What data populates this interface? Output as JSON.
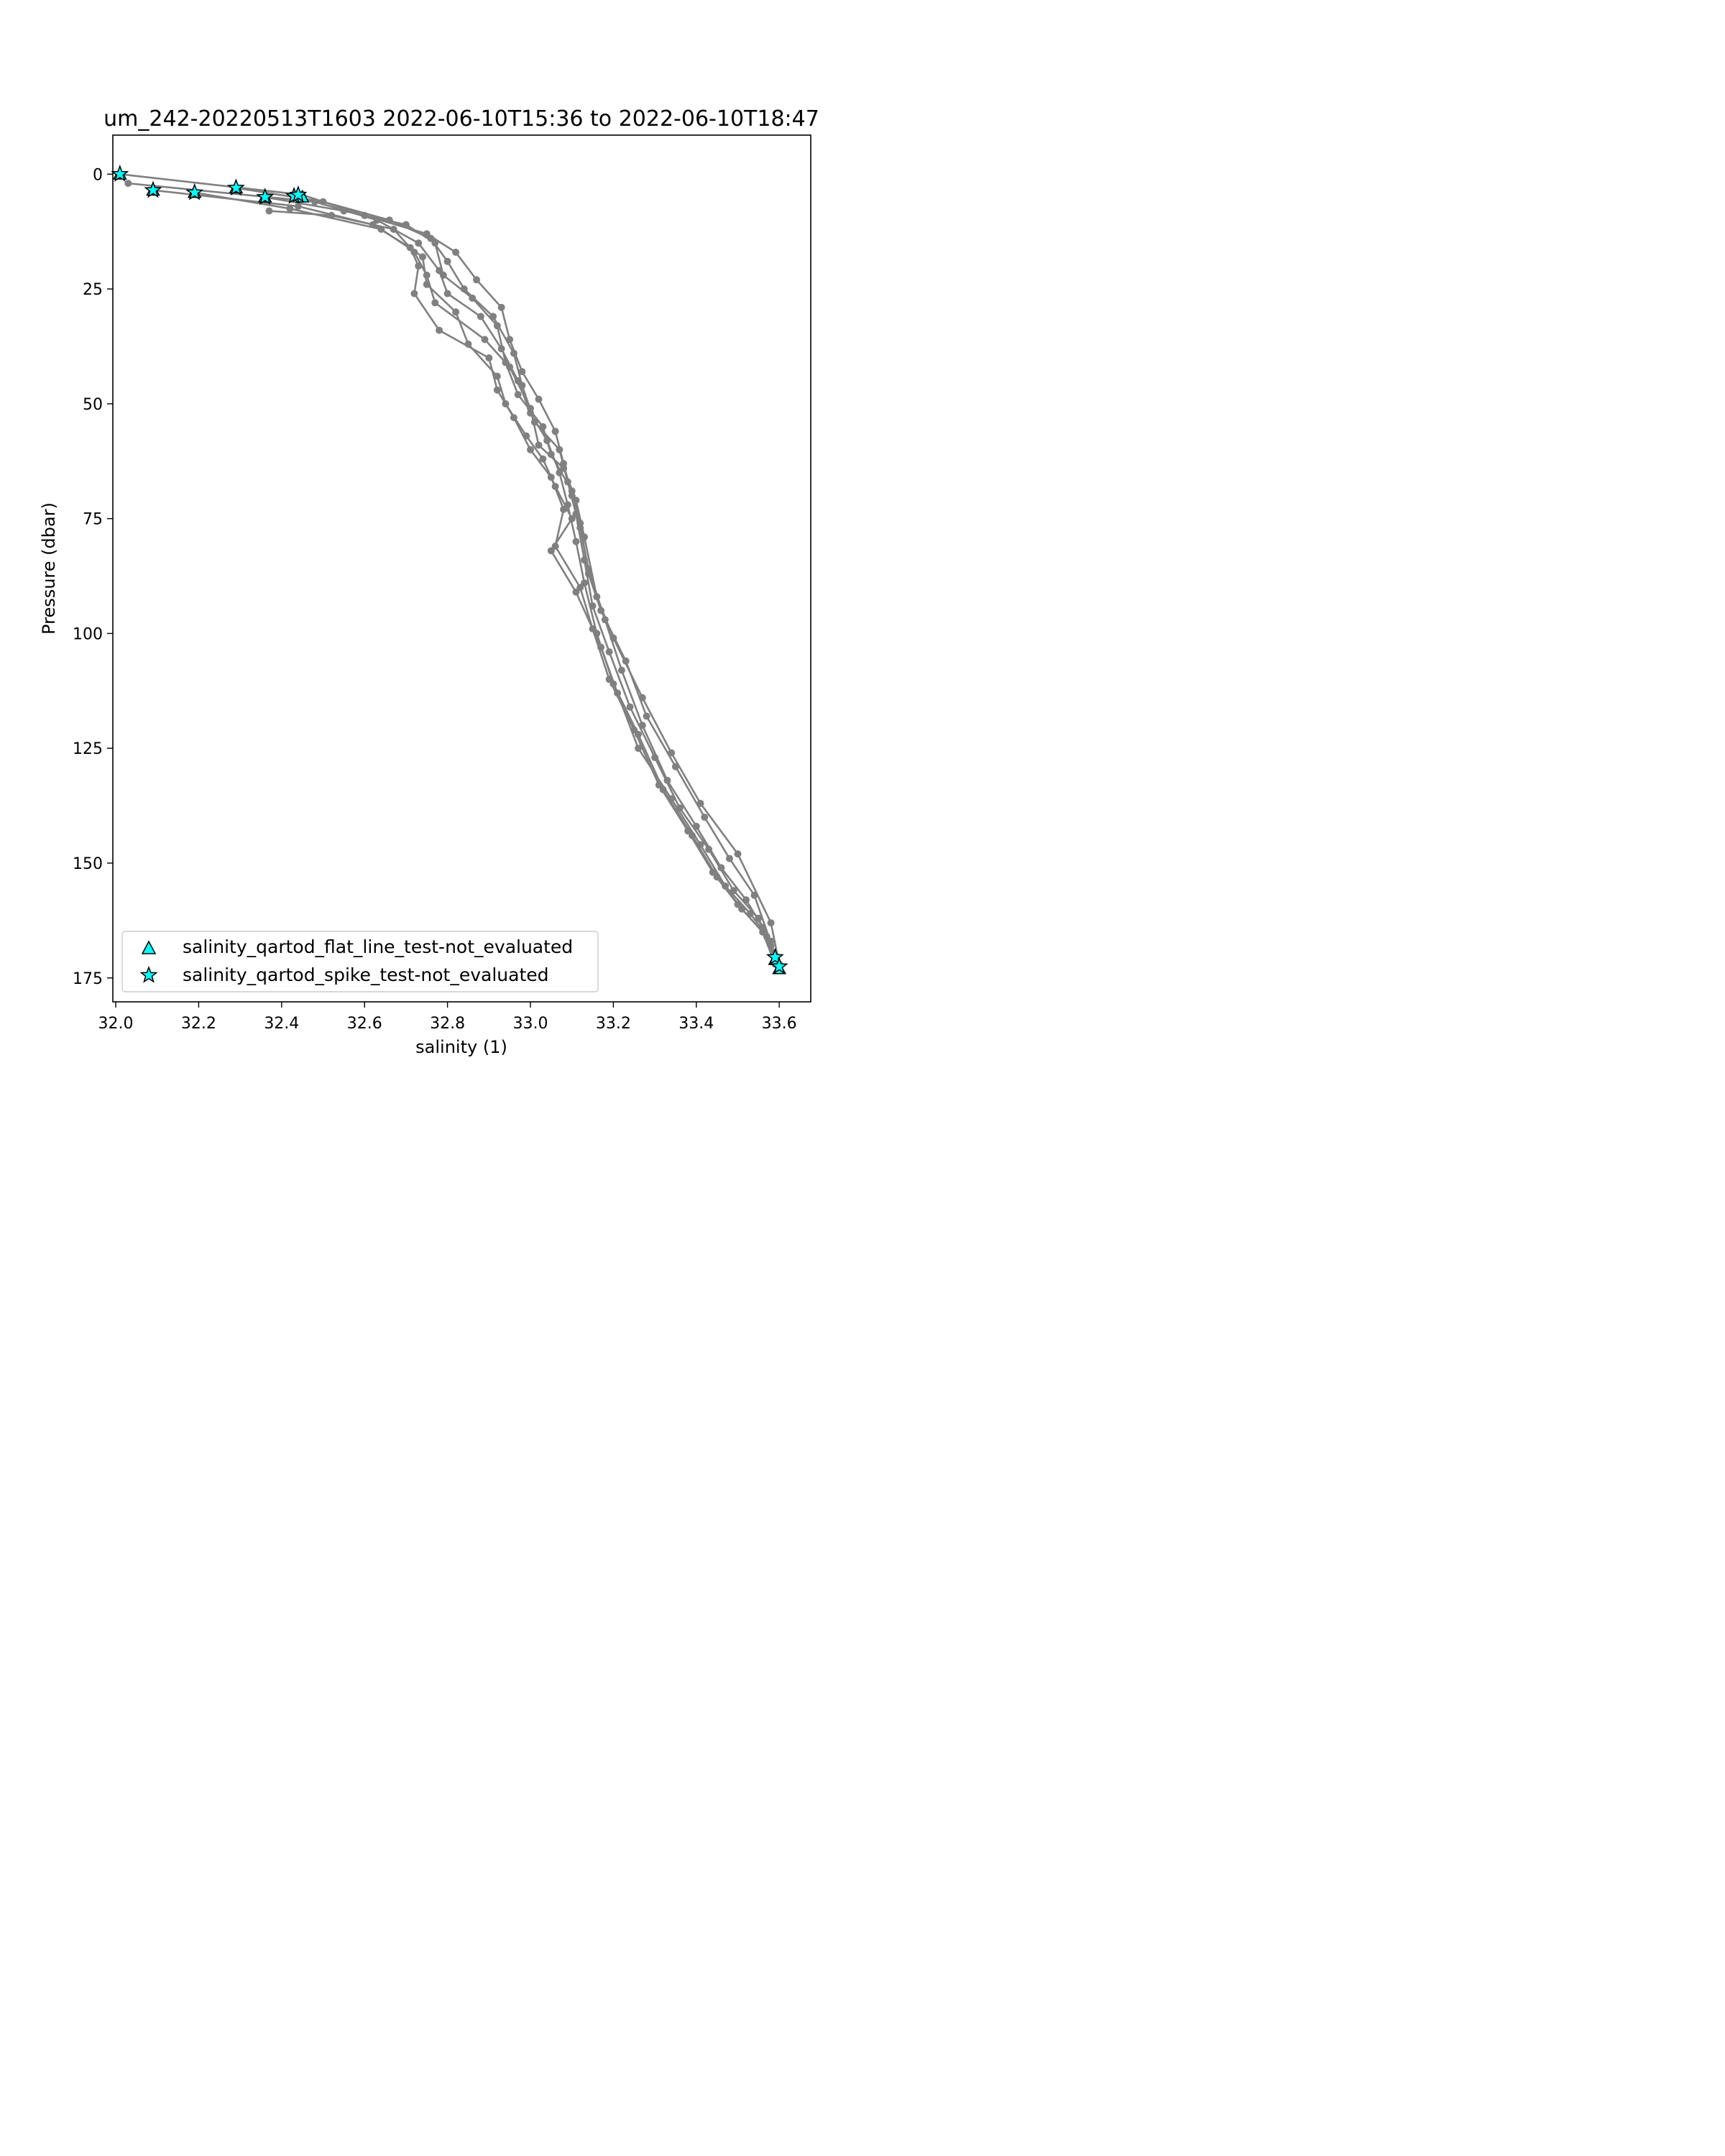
{
  "chart_data": {
    "type": "line",
    "title": "um_242-20220513T1603 2022-06-10T15:36 to 2022-06-10T18:47",
    "xlabel": "salinity (1)",
    "ylabel": "Pressure (dbar)",
    "xlim": [
      31.993,
      33.676
    ],
    "ylim": [
      180.2,
      -8.5
    ],
    "y_inverted": true,
    "grid": false,
    "x_ticks": [
      {
        "value": 32.0,
        "label": "32.0"
      },
      {
        "value": 32.2,
        "label": "32.2"
      },
      {
        "value": 32.4,
        "label": "32.4"
      },
      {
        "value": 32.6,
        "label": "32.6"
      },
      {
        "value": 32.8,
        "label": "32.8"
      },
      {
        "value": 33.0,
        "label": "33.0"
      },
      {
        "value": 33.2,
        "label": "33.2"
      },
      {
        "value": 33.4,
        "label": "33.4"
      },
      {
        "value": 33.6,
        "label": "33.6"
      }
    ],
    "y_ticks": [
      {
        "value": 0,
        "label": "0"
      },
      {
        "value": 25,
        "label": "25"
      },
      {
        "value": 50,
        "label": "50"
      },
      {
        "value": 75,
        "label": "75"
      },
      {
        "value": 100,
        "label": "100"
      },
      {
        "value": 125,
        "label": "125"
      },
      {
        "value": 150,
        "label": "150"
      },
      {
        "value": 175,
        "label": "175"
      }
    ],
    "line_color": "#808080",
    "marker_color": "#00ffff",
    "legend_position": "lower left",
    "series": [
      {
        "salinity": [
          32.01,
          32.45,
          32.6,
          32.75,
          32.82,
          32.87,
          32.93,
          32.95,
          32.98,
          33.02,
          33.06,
          33.08,
          33.1,
          33.12,
          33.14,
          33.18,
          33.22,
          33.27,
          33.33,
          33.4,
          33.46,
          33.52,
          33.56,
          33.59
        ],
        "pressure": [
          0,
          4.5,
          9,
          13,
          17,
          23,
          29,
          36,
          43,
          49,
          56,
          63,
          70,
          77,
          86,
          97,
          108,
          120,
          132,
          142,
          151,
          158,
          164,
          171
        ]
      },
      {
        "salinity": [
          32.03,
          32.48,
          32.63,
          32.73,
          32.78,
          32.8,
          32.88,
          32.93,
          32.97,
          33.0,
          33.04,
          33.07,
          33.09,
          33.11,
          33.13,
          33.16,
          33.2,
          33.26,
          33.32,
          33.39,
          33.45,
          33.51,
          33.57,
          33.6
        ],
        "pressure": [
          2,
          6,
          10,
          15,
          21,
          26,
          31,
          38,
          45,
          52,
          58,
          65,
          72,
          80,
          89,
          100,
          111,
          122,
          134,
          144,
          153,
          160,
          166,
          172
        ]
      },
      {
        "salinity": [
          32.09,
          32.44,
          32.62,
          32.71,
          32.73,
          32.72,
          32.78,
          32.9,
          32.92,
          32.96,
          33.0,
          33.05,
          33.08,
          33.06,
          33.12,
          33.15,
          33.19,
          33.25,
          33.31,
          33.38,
          33.44,
          33.5,
          33.56,
          33.59
        ],
        "pressure": [
          3.5,
          7,
          11,
          16,
          20,
          26,
          34,
          40,
          47,
          53,
          60,
          66,
          73,
          81,
          90,
          99,
          110,
          121,
          133,
          143,
          152,
          159,
          165,
          172
        ]
      },
      {
        "salinity": [
          32.19,
          32.42,
          32.64,
          32.74,
          32.75,
          32.82,
          32.85,
          32.92,
          32.94,
          32.99,
          33.03,
          33.06,
          33.1,
          33.05,
          33.11,
          33.17,
          33.21,
          33.26,
          33.34,
          33.41,
          33.47,
          33.53,
          33.58
        ],
        "pressure": [
          4,
          7.5,
          12,
          18,
          24,
          30,
          37,
          44,
          50,
          57,
          62,
          68,
          75,
          82,
          91,
          103,
          113,
          125,
          136,
          146,
          155,
          161,
          167
        ]
      },
      {
        "salinity": [
          32.29,
          32.5,
          32.66,
          32.76,
          32.8,
          32.84,
          32.91,
          32.96,
          32.98,
          33.01,
          33.07,
          33.09,
          33.11,
          33.13,
          33.15,
          33.19,
          33.24,
          33.3,
          33.36,
          33.43,
          33.49,
          33.55,
          33.58,
          33.6
        ],
        "pressure": [
          3,
          6,
          10,
          14,
          19,
          25,
          31,
          39,
          46,
          54,
          60,
          67,
          74,
          84,
          94,
          104,
          116,
          127,
          138,
          147,
          156,
          162,
          168,
          173
        ]
      },
      {
        "salinity": [
          32.36,
          32.55,
          32.7,
          32.77,
          32.79,
          32.86,
          32.92,
          32.94,
          32.97,
          33.03,
          33.05,
          33.1,
          33.12,
          33.14,
          33.17,
          33.23,
          33.28,
          33.35,
          33.42,
          33.48,
          33.54,
          33.59
        ],
        "pressure": [
          5,
          8,
          11,
          15,
          22,
          27,
          33,
          41,
          48,
          55,
          61,
          69,
          76,
          87,
          95,
          106,
          118,
          129,
          140,
          149,
          157,
          170
        ]
      },
      {
        "salinity": [
          32.37,
          32.52,
          32.67,
          32.72,
          32.75,
          32.77,
          32.89,
          32.95,
          33.0,
          33.02,
          33.08,
          33.11,
          33.13,
          33.16,
          33.2,
          33.27,
          33.34,
          33.41,
          33.5,
          33.58,
          33.6
        ],
        "pressure": [
          8,
          9,
          12,
          17,
          22,
          28,
          36,
          42,
          51,
          59,
          64,
          71,
          79,
          92,
          101,
          114,
          126,
          137,
          148,
          163,
          172
        ]
      }
    ],
    "legend": [
      {
        "label": "salinity_qartod_flat_line_test-not_evaluated",
        "marker": "triangle",
        "color": "#00ffff",
        "points": [
          [
            32.01,
            0
          ],
          [
            32.09,
            3.5
          ],
          [
            32.19,
            4
          ],
          [
            32.29,
            3
          ],
          [
            32.36,
            5
          ],
          [
            32.44,
            4.5
          ],
          [
            32.45,
            5
          ],
          [
            33.59,
            171
          ],
          [
            33.6,
            173
          ]
        ]
      },
      {
        "label": "salinity_qartod_spike_test-not_evaluated",
        "marker": "star",
        "color": "#00ffff",
        "points": [
          [
            32.01,
            0
          ],
          [
            32.09,
            3.5
          ],
          [
            32.19,
            4
          ],
          [
            32.29,
            3
          ],
          [
            32.36,
            5
          ],
          [
            32.43,
            4.8
          ],
          [
            32.44,
            4.5
          ],
          [
            33.59,
            170.5
          ],
          [
            33.6,
            172.5
          ]
        ]
      }
    ]
  }
}
